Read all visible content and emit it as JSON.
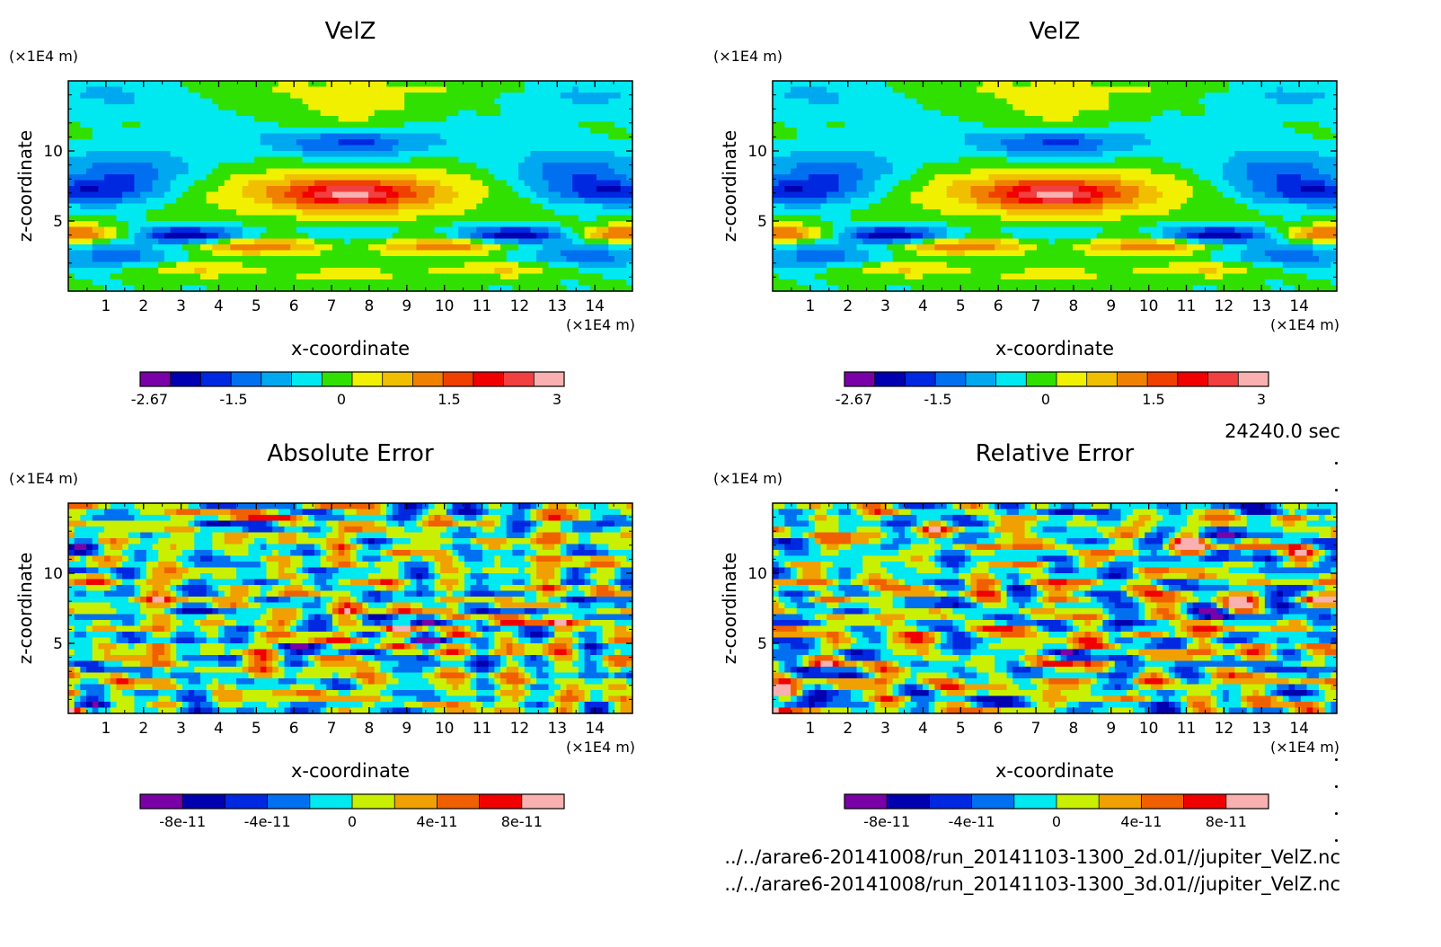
{
  "time_label": "24240.0 sec",
  "files": [
    "../../arare6-20141008/run_20141103-1300_2d.01//jupiter_VelZ.nc",
    "../../arare6-20141008/run_20141103-1300_3d.01//jupiter_VelZ.nc"
  ],
  "chart_data": [
    {
      "type": "heatmap",
      "title": "VelZ",
      "xlabel": "x-coordinate",
      "ylabel": "z-coordinate",
      "x_unit": "(×1E4 m)",
      "y_unit": "(×1E4 m)",
      "xlim": [
        0,
        15
      ],
      "ylim": [
        0,
        15
      ],
      "x_ticks": [
        1,
        2,
        3,
        4,
        5,
        6,
        7,
        8,
        9,
        10,
        11,
        12,
        13,
        14
      ],
      "y_ticks": [
        5,
        10
      ],
      "field": "velz",
      "colorbar": {
        "colors": [
          "#7a00a8",
          "#0000b0",
          "#0028e0",
          "#0070f0",
          "#00a8f0",
          "#00e8f0",
          "#30e000",
          "#f0f000",
          "#f0c000",
          "#f08000",
          "#f04000",
          "#f00000",
          "#f04040",
          "#f8b0b0"
        ],
        "tick_labels": [
          "-2.67",
          "-1.5",
          "0",
          "1.5",
          "3"
        ],
        "tick_values": [
          -2.67,
          -1.5,
          0,
          1.5,
          3
        ],
        "vmin": -2.8,
        "vmax": 3.1
      }
    },
    {
      "type": "heatmap",
      "title": "VelZ",
      "xlabel": "x-coordinate",
      "ylabel": "z-coordinate",
      "x_unit": "(×1E4 m)",
      "y_unit": "(×1E4 m)",
      "xlim": [
        0,
        15
      ],
      "ylim": [
        0,
        15
      ],
      "x_ticks": [
        1,
        2,
        3,
        4,
        5,
        6,
        7,
        8,
        9,
        10,
        11,
        12,
        13,
        14
      ],
      "y_ticks": [
        5,
        10
      ],
      "field": "velz",
      "colorbar": {
        "colors": [
          "#7a00a8",
          "#0000b0",
          "#0028e0",
          "#0070f0",
          "#00a8f0",
          "#00e8f0",
          "#30e000",
          "#f0f000",
          "#f0c000",
          "#f08000",
          "#f04000",
          "#f00000",
          "#f04040",
          "#f8b0b0"
        ],
        "tick_labels": [
          "-2.67",
          "-1.5",
          "0",
          "1.5",
          "3"
        ],
        "tick_values": [
          -2.67,
          -1.5,
          0,
          1.5,
          3
        ],
        "vmin": -2.8,
        "vmax": 3.1
      }
    },
    {
      "type": "heatmap",
      "title": "Absolute Error",
      "xlabel": "x-coordinate",
      "ylabel": "z-coordinate",
      "x_unit": "(×1E4 m)",
      "y_unit": "(×1E4 m)",
      "xlim": [
        0,
        15
      ],
      "ylim": [
        0,
        15
      ],
      "x_ticks": [
        1,
        2,
        3,
        4,
        5,
        6,
        7,
        8,
        9,
        10,
        11,
        12,
        13,
        14
      ],
      "y_ticks": [
        5,
        10
      ],
      "field": "noise",
      "colorbar": {
        "colors": [
          "#7a00a8",
          "#0000b0",
          "#0028e0",
          "#0070f0",
          "#00e8f0",
          "#c8f000",
          "#f0a000",
          "#f06000",
          "#f00000",
          "#f8b0b0"
        ],
        "tick_labels": [
          "-8e-11",
          "-4e-11",
          "0",
          "4e-11",
          "8e-11"
        ],
        "tick_values": [
          -8e-11,
          -4e-11,
          0,
          4e-11,
          8e-11
        ],
        "vmin": -1e-10,
        "vmax": 1e-10
      }
    },
    {
      "type": "heatmap",
      "title": "Relative Error",
      "xlabel": "x-coordinate",
      "ylabel": "z-coordinate",
      "x_unit": "(×1E4 m)",
      "y_unit": "(×1E4 m)",
      "xlim": [
        0,
        15
      ],
      "ylim": [
        0,
        15
      ],
      "x_ticks": [
        1,
        2,
        3,
        4,
        5,
        6,
        7,
        8,
        9,
        10,
        11,
        12,
        13,
        14
      ],
      "y_ticks": [
        5,
        10
      ],
      "field": "noise",
      "colorbar": {
        "colors": [
          "#7a00a8",
          "#0000b0",
          "#0028e0",
          "#0070f0",
          "#00e8f0",
          "#c8f000",
          "#f0a000",
          "#f06000",
          "#f00000",
          "#f8b0b0"
        ],
        "tick_labels": [
          "-8e-11",
          "-4e-11",
          "0",
          "4e-11",
          "8e-11"
        ],
        "tick_values": [
          -8e-11,
          -4e-11,
          0,
          4e-11,
          8e-11
        ],
        "vmin": -1e-10,
        "vmax": 1e-10
      }
    }
  ]
}
